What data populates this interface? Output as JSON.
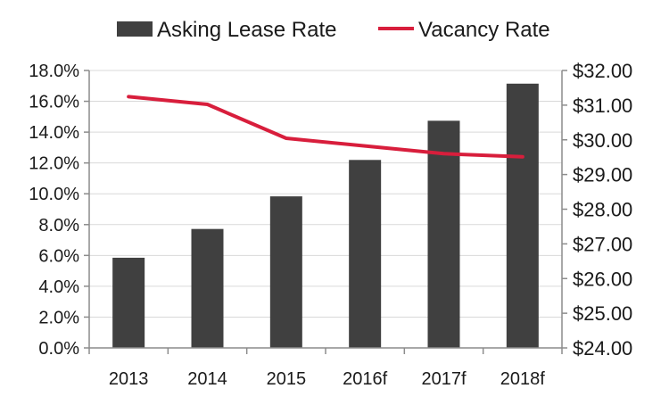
{
  "chart_data": {
    "type": "bar",
    "title": "",
    "xlabel": "",
    "categories": [
      "2013",
      "2014",
      "2015",
      "2016f",
      "2017f",
      "2018f"
    ],
    "series": [
      {
        "name": "Asking Lease Rate",
        "type": "bar",
        "axis": "right",
        "color": "#404040",
        "values": [
          26.6,
          27.43,
          28.37,
          29.42,
          30.55,
          31.62
        ]
      },
      {
        "name": "Vacancy Rate",
        "type": "line",
        "axis": "left",
        "color": "#d81e3c",
        "values": [
          16.3,
          15.8,
          13.6,
          13.1,
          12.6,
          12.4
        ]
      }
    ],
    "y_left": {
      "ylim": [
        0,
        18
      ],
      "ticks": [
        0,
        2,
        4,
        6,
        8,
        10,
        12,
        14,
        16,
        18
      ],
      "tick_labels": [
        "0.0%",
        "2.0%",
        "4.0%",
        "6.0%",
        "8.0%",
        "10.0%",
        "12.0%",
        "14.0%",
        "16.0%",
        "18.0%"
      ]
    },
    "y_right": {
      "ylim": [
        24,
        32
      ],
      "ticks": [
        24,
        25,
        26,
        27,
        28,
        29,
        30,
        31,
        32
      ],
      "tick_labels": [
        "$24.00",
        "$25.00",
        "$26.00",
        "$27.00",
        "$28.00",
        "$29.00",
        "$30.00",
        "$31.00",
        "$32.00"
      ]
    },
    "grid": true,
    "legend": {
      "position": "top-center"
    }
  }
}
